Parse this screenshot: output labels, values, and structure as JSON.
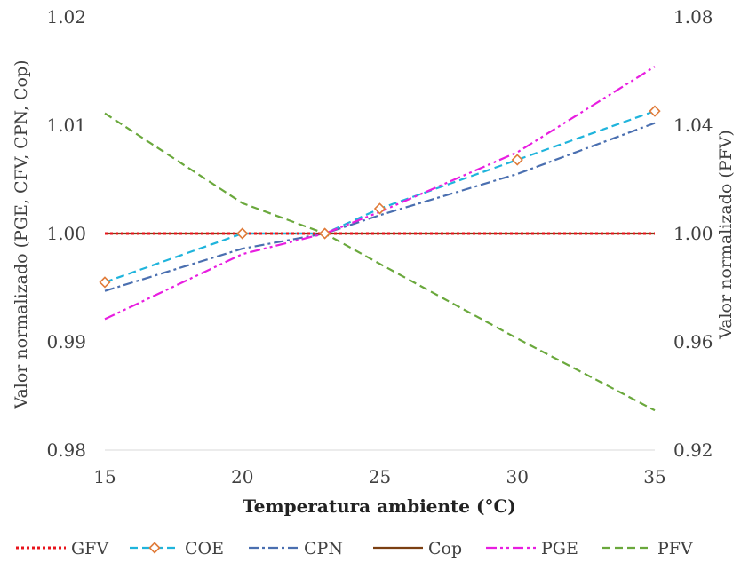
{
  "chart_data": {
    "type": "line",
    "xlabel": "Temperatura ambiente (°C)",
    "ylabel_left": "Valor normalizado (PGE, CFV, CPN, Cop)",
    "ylabel_right": "Valor normalizado (PFV)",
    "x_ticks": [
      "15",
      "20",
      "25",
      "30",
      "35"
    ],
    "xlim": [
      15,
      35
    ],
    "ylim_left": [
      0.98,
      1.02
    ],
    "y_ticks_left": [
      "0.98",
      "0.99",
      "1.00",
      "1.01",
      "1.02"
    ],
    "ylim_right": [
      0.92,
      1.08
    ],
    "y_ticks_right": [
      "0.92",
      "0.96",
      "1.00",
      "1.04",
      "1.08"
    ],
    "grid": false,
    "legend_position": "bottom",
    "series": [
      {
        "name": "GFV",
        "axis": "left",
        "color": "#e8141c",
        "style": "dotted",
        "marker": "none",
        "x": [
          15,
          35
        ],
        "y": [
          1.0,
          1.0
        ]
      },
      {
        "name": "COE",
        "axis": "left",
        "color": "#1fb4dc",
        "style": "dashed",
        "marker": "diamond",
        "x": [
          15,
          20,
          23,
          25,
          30,
          35
        ],
        "y": [
          0.9955,
          1.0,
          1.0,
          1.0023,
          1.0068,
          1.0113
        ]
      },
      {
        "name": "CPN",
        "axis": "left",
        "color": "#4a6fb0",
        "style": "dashdot",
        "marker": "none",
        "x": [
          15,
          20,
          23,
          25,
          30,
          35
        ],
        "y": [
          0.9947,
          0.9986,
          1.0,
          1.0017,
          1.0055,
          1.0102
        ]
      },
      {
        "name": "Cop",
        "axis": "left",
        "color": "#7b3f12",
        "style": "solid",
        "marker": "none",
        "x": [
          15,
          35
        ],
        "y": [
          1.0,
          1.0
        ]
      },
      {
        "name": "PGE",
        "axis": "left",
        "color": "#e81ee0",
        "style": "dashdotdot",
        "marker": "none",
        "x": [
          15,
          20,
          23,
          25,
          30,
          35
        ],
        "y": [
          0.9921,
          0.9981,
          1.0,
          1.002,
          1.0075,
          1.0154
        ]
      },
      {
        "name": "PFV",
        "axis": "right",
        "color": "#6aa83c",
        "style": "dashed",
        "marker": "none",
        "x": [
          15,
          20,
          23,
          25,
          30,
          35
        ],
        "y": [
          1.0444,
          1.0112,
          1.0,
          0.9888,
          0.9612,
          0.9347
        ]
      }
    ]
  }
}
